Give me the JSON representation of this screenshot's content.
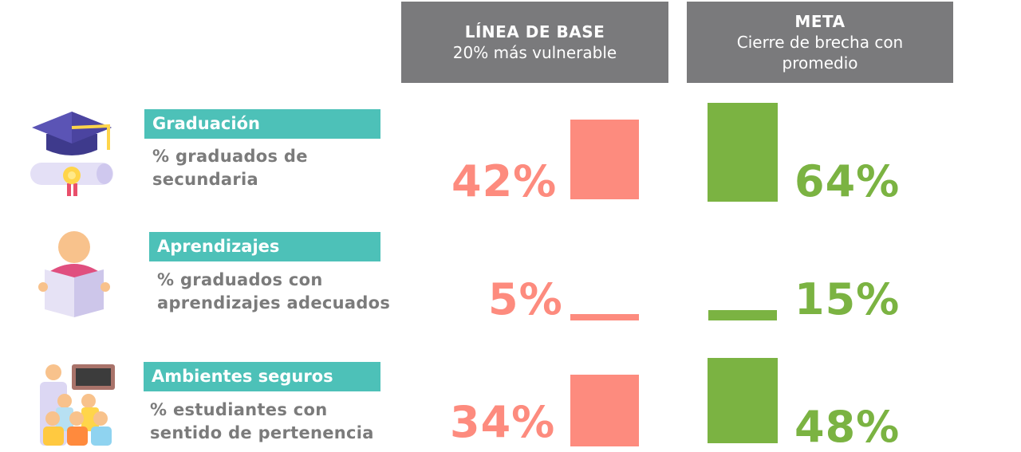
{
  "headers": {
    "base": {
      "title": "LÍNEA DE BASE",
      "subtitle": "20% más vulnerable"
    },
    "meta": {
      "title": "META",
      "subtitle": "Cierre de brecha con promedio"
    }
  },
  "rows": [
    {
      "label": "Graduación",
      "description": "% graduados de secundaria",
      "base_text": "42%",
      "meta_text": "64%",
      "icon": "graduation-cap-icon"
    },
    {
      "label": "Aprendizajes",
      "description": "% graduados con aprendizajes adecuados",
      "base_text": "5%",
      "meta_text": "15%",
      "icon": "student-reading-icon"
    },
    {
      "label": "Ambientes seguros",
      "description": "% estudiantes con sentido de pertenencia",
      "base_text": "34%",
      "meta_text": "48%",
      "icon": "classroom-icon"
    }
  ],
  "chart_data": {
    "type": "bar",
    "categories": [
      "Graduación",
      "Aprendizajes",
      "Ambientes seguros"
    ],
    "series": [
      {
        "name": "LÍNEA DE BASE",
        "values": [
          42,
          5,
          34
        ]
      },
      {
        "name": "META",
        "values": [
          64,
          15,
          48
        ]
      }
    ],
    "colors": {
      "base": "#fd8b7e",
      "meta": "#7bb342",
      "label_bg": "#4dc1b8",
      "header_bg": "#7a7a7c"
    }
  }
}
